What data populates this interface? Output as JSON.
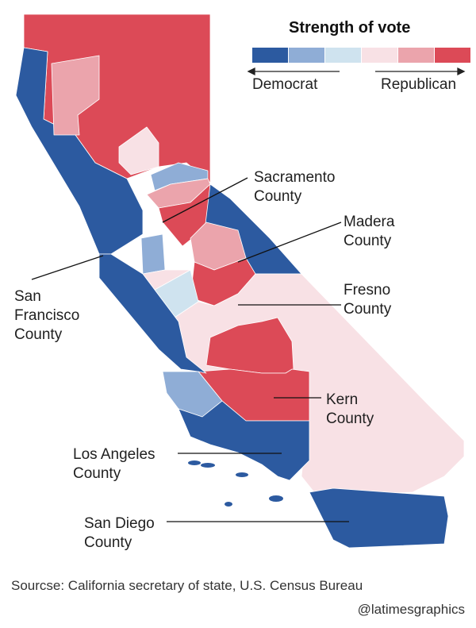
{
  "legend": {
    "title": "Strength of vote",
    "left_label": "Democrat",
    "right_label": "Republican",
    "scale": [
      {
        "name": "strong-democrat",
        "color": "#2c5aa0"
      },
      {
        "name": "lean-democrat",
        "color": "#8fadd6"
      },
      {
        "name": "slight-democrat",
        "color": "#cfe3ef"
      },
      {
        "name": "slight-republican",
        "color": "#f8e1e5"
      },
      {
        "name": "lean-republican",
        "color": "#eba4ac"
      },
      {
        "name": "strong-republican",
        "color": "#dc4a57"
      }
    ]
  },
  "annotations": {
    "sacramento": [
      "Sacramento",
      "County"
    ],
    "madera": [
      "Madera",
      "County"
    ],
    "fresno": [
      "Fresno",
      "County"
    ],
    "san_francisco": [
      "San",
      "Francisco",
      "County"
    ],
    "kern": [
      "Kern",
      "County"
    ],
    "los_angeles": [
      "Los Angeles",
      "County"
    ],
    "san_diego": [
      "San Diego",
      "County"
    ]
  },
  "footer": {
    "source": "Sourcse: California secretary of state, U.S. Census Bureau",
    "credit": "@latimesgraphics"
  }
}
